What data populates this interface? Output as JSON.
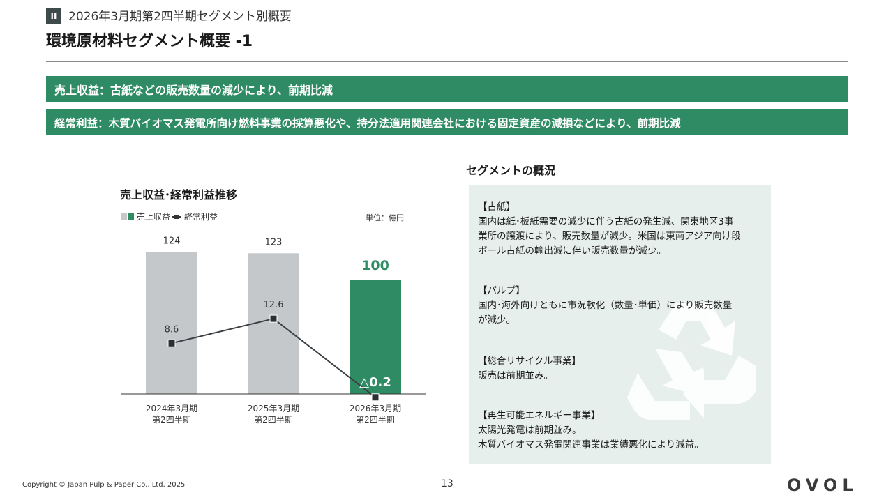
{
  "header": {
    "section_badge": "II",
    "section_title": "2026年3月期第2四半期セグメント別概要",
    "page_title": "環境原材料セグメント概要 -1"
  },
  "summary": {
    "revenue": "売上収益：古紙などの販売数量の減少により、前期比減",
    "ordinary_profit": "経常利益：木質バイオマス発電所向け燃料事業の採算悪化や、持分法適用関連会社における固定資産の減損などにより、前期比減"
  },
  "chart": {
    "title": "売上収益･経常利益推移",
    "legend_revenue": "売上収益",
    "legend_profit": "経常利益",
    "unit": "単位：億円"
  },
  "chart_data": {
    "type": "bar",
    "title": "売上収益･経常利益推移",
    "unit": "単位：億円",
    "categories": [
      "2024年3月期\n第2四半期",
      "2025年3月期\n第2四半期",
      "2026年3月期\n第2四半期"
    ],
    "series": [
      {
        "name": "売上収益",
        "type": "bar",
        "values": [
          124,
          123,
          100
        ],
        "labels": [
          "124",
          "123",
          "100"
        ],
        "colors": [
          "#c5c8ca",
          "#c5c8ca",
          "#2e8b63"
        ]
      },
      {
        "name": "経常利益",
        "type": "line",
        "values": [
          8.6,
          12.6,
          -0.2
        ],
        "labels": [
          "8.6",
          "12.6",
          "△0.2"
        ]
      }
    ],
    "legend": "top-left",
    "grid": false
  },
  "overview": {
    "title": "セグメントの概況",
    "sections": [
      {
        "heading": "【古紙】",
        "lines": [
          "国内は紙･板紙需要の減少に伴う古紙の発生減、関東地区3事",
          "業所の譲渡により、販売数量が減少。米国は東南アジア向け段",
          "ボール古紙の輸出減に伴い販売数量が減少。"
        ]
      },
      {
        "heading": "【パルプ】",
        "lines": [
          "国内･海外向けともに市況軟化（数量･単価）により販売数量",
          "が減少。"
        ]
      },
      {
        "heading": "【総合リサイクル事業】",
        "lines": [
          "販売は前期並み。"
        ]
      },
      {
        "heading": "【再生可能エネルギー事業】",
        "lines": [
          "太陽光発電は前期並み。",
          "木質バイオマス発電関連事業は業績悪化により減益。"
        ]
      }
    ]
  },
  "footer": {
    "copyright": "Copyright © Japan Pulp & Paper Co., Ltd. 2025",
    "page_number": "13",
    "logo_text": "OVOL"
  },
  "colors": {
    "green": "#2e8b63",
    "gray_bar": "#c5c8ca",
    "panel": "#e7efec",
    "line": "#3a3f44"
  }
}
